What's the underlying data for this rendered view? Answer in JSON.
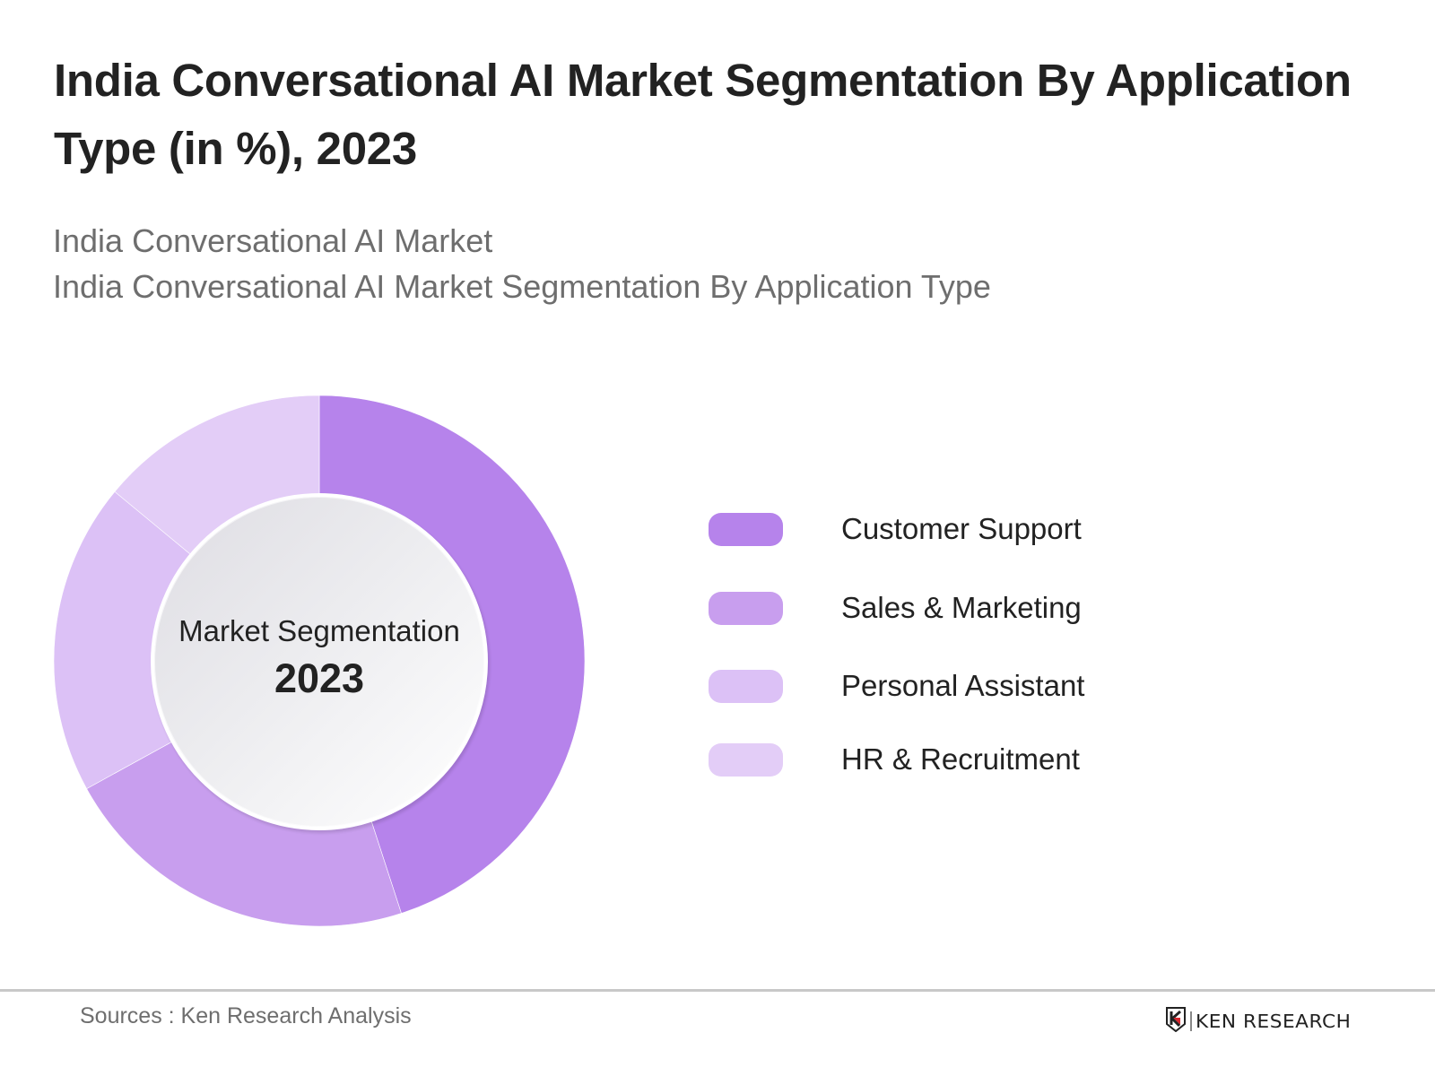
{
  "header": {
    "title": "India Conversational AI Market Segmentation By Application Type (in %), 2023",
    "subtitle_1": "India Conversational AI Market",
    "subtitle_2": "India Conversational AI Market Segmentation By Application Type"
  },
  "center": {
    "label": "Market Segmentation",
    "year": "2023"
  },
  "legend": {
    "items": [
      {
        "label": "Customer Support",
        "color": "#b683eb"
      },
      {
        "label": "Sales & Marketing",
        "color": "#c89eee"
      },
      {
        "label": "Personal Assistant",
        "color": "#dcc1f6"
      },
      {
        "label": "HR & Recruitment",
        "color": "#e3cdf7"
      }
    ]
  },
  "footer": {
    "source": "Sources : Ken Research Analysis",
    "logo_text": "KEN RESEARCH"
  },
  "chart_data": {
    "type": "pie",
    "variant": "donut",
    "title": "India Conversational AI Market Segmentation By Application Type (in %), 2023",
    "subtitle": [
      "India Conversational AI Market",
      "India Conversational AI Market Segmentation By Application Type"
    ],
    "center_text": [
      "Market Segmentation",
      "2023"
    ],
    "categories": [
      "Customer Support",
      "Sales & Marketing",
      "Personal Assistant",
      "HR & Recruitment"
    ],
    "values": [
      45,
      22,
      19,
      14
    ],
    "unit": "%",
    "colors": [
      "#b683eb",
      "#c89eee",
      "#dcc1f6",
      "#e3cdf7"
    ],
    "start_angle_deg": 0,
    "direction": "clockwise",
    "data_labels": false,
    "legend_position": "right",
    "source": "Sources : Ken Research Analysis"
  }
}
